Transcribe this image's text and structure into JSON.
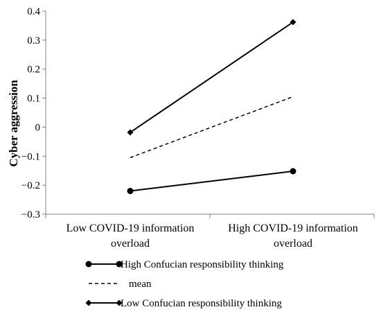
{
  "chart_data": {
    "type": "line",
    "title": "",
    "xlabel": "",
    "ylabel": "Cyber aggression",
    "categories": [
      [
        "Low COVID-19 information",
        "overload"
      ],
      [
        "High COVID-19 information",
        "overload"
      ]
    ],
    "ylim": [
      -0.3,
      0.4
    ],
    "yticks": [
      "0.4",
      "0.3",
      "0.2",
      "0.1",
      "0",
      "−0.1",
      "−0.2",
      "−0.3"
    ],
    "ytick_values": [
      0.4,
      0.3,
      0.2,
      0.1,
      0,
      -0.1,
      -0.2,
      -0.3
    ],
    "grid": false,
    "legend_position": "bottom",
    "series": [
      {
        "name": "High Confucian responsibility thinking",
        "values": [
          -0.22,
          -0.152
        ],
        "style": "solid",
        "marker": "circle",
        "color": "#000000"
      },
      {
        "name": "mean",
        "values": [
          -0.105,
          0.105
        ],
        "style": "dashed",
        "marker": "none",
        "color": "#000000"
      },
      {
        "name": "Low Confucian responsibility thinking",
        "values": [
          -0.018,
          0.362
        ],
        "style": "solid",
        "marker": "diamond",
        "color": "#000000"
      }
    ]
  }
}
